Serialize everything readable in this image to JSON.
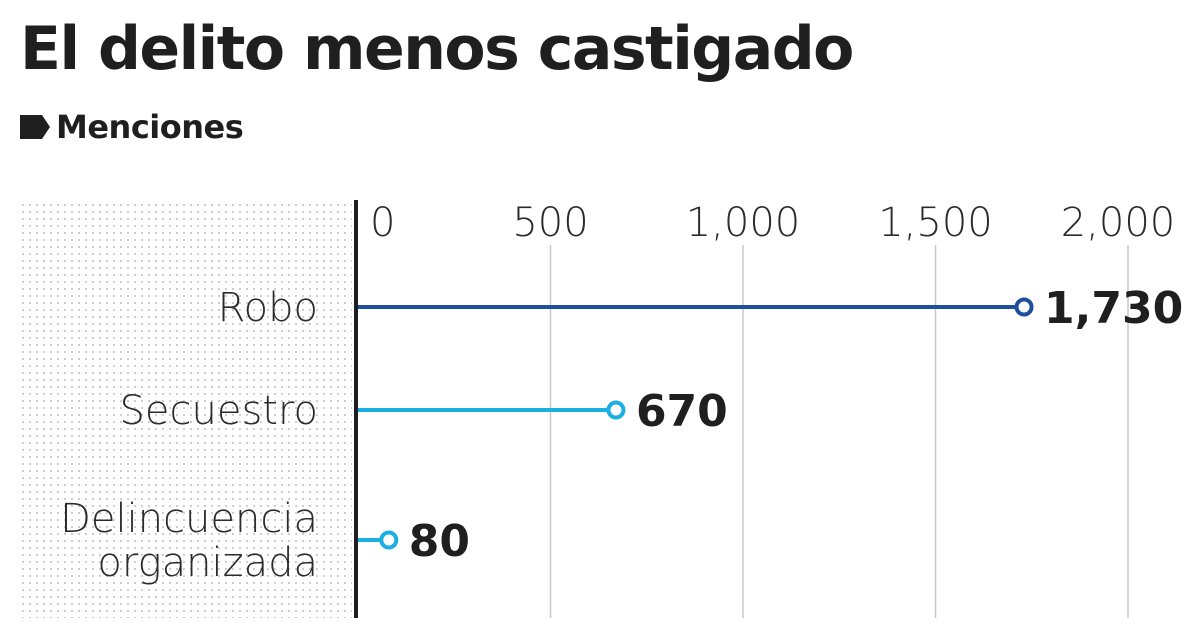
{
  "chart_data": {
    "type": "bar",
    "title": "El delito menos castigado",
    "subtitle": "Menciones",
    "categories": [
      [
        "Robo"
      ],
      [
        "Secuestro"
      ],
      [
        "Delincuencia",
        "organizada"
      ]
    ],
    "values": [
      1730,
      670,
      80
    ],
    "value_labels": [
      "1,730",
      "670",
      "80"
    ],
    "colors": [
      "#1f4e9c",
      "#1aaee3",
      "#1aaee3"
    ],
    "xlim": [
      0,
      2000
    ],
    "xticks": [
      0,
      500,
      1000,
      1500,
      2000
    ],
    "xtick_labels": [
      "0",
      "500",
      "1,000",
      "1,500",
      "2,000"
    ],
    "grid": true,
    "orientation": "horizontal",
    "style": "lollipop"
  }
}
